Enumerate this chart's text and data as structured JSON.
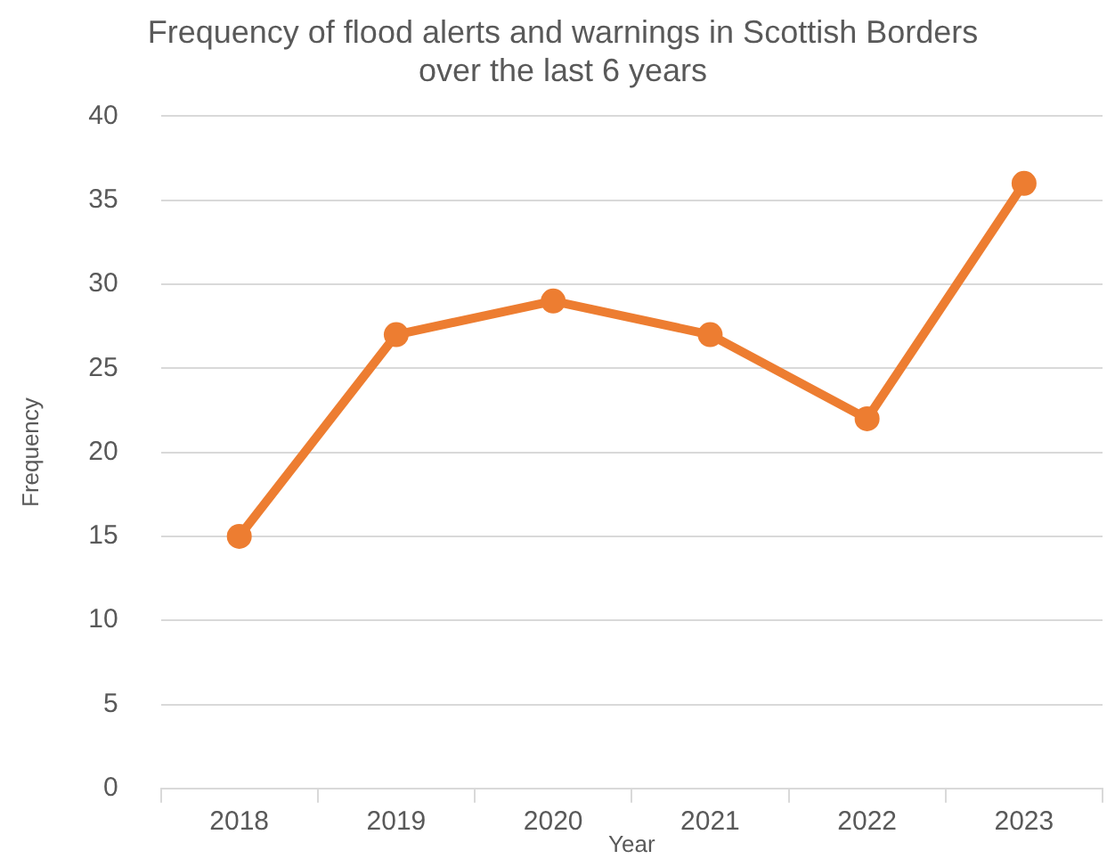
{
  "chart_data": {
    "type": "line",
    "title": "Frequency of flood alerts and warnings in Scottish Borders\nover the last 6 years",
    "xlabel": "Year",
    "ylabel": "Frequency",
    "categories": [
      "2018",
      "2019",
      "2020",
      "2021",
      "2022",
      "2023"
    ],
    "series": [
      {
        "color": "#ed7d31",
        "values": [
          15,
          27,
          29,
          27,
          22,
          36
        ]
      }
    ],
    "ylim": [
      0,
      40
    ],
    "yticks": [
      0,
      5,
      10,
      15,
      20,
      25,
      30,
      35,
      40
    ],
    "grid": "y",
    "marker": "circle",
    "line_style": "solid"
  }
}
